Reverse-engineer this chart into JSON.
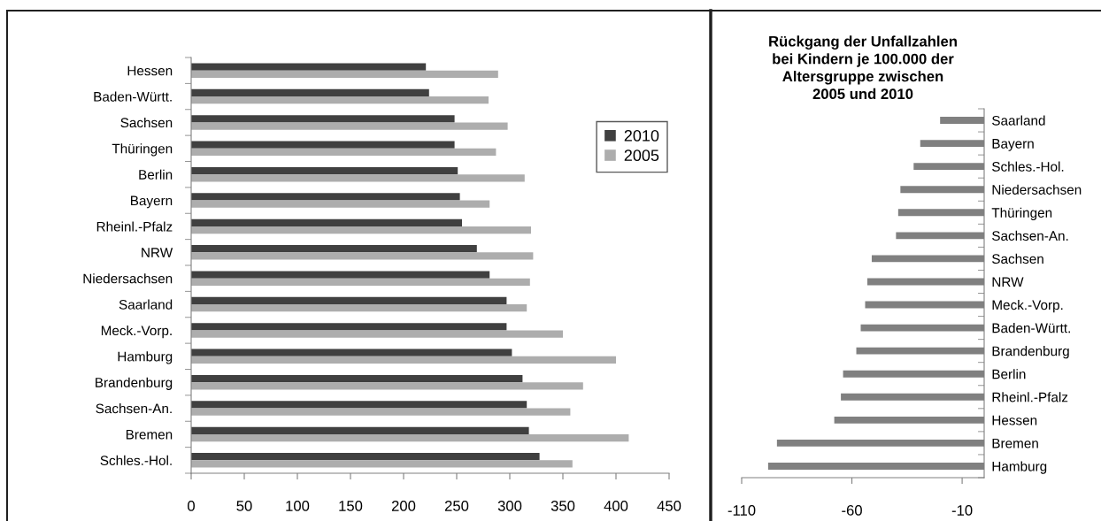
{
  "chart_data": [
    {
      "type": "bar",
      "orientation": "horizontal",
      "categories": [
        "Hessen",
        "Baden-Württ.",
        "Sachsen",
        "Thüringen",
        "Berlin",
        "Bayern",
        "Rheinl.-Pfalz",
        "NRW",
        "Niedersachsen",
        "Saarland",
        "Meck.-Vorp.",
        "Hamburg",
        "Brandenburg",
        "Sachsen-An.",
        "Bremen",
        "Schles.-Hol."
      ],
      "series": [
        {
          "name": "2010",
          "color": "#404040",
          "values": [
            221,
            224,
            248,
            248,
            251,
            253,
            255,
            269,
            281,
            297,
            297,
            302,
            312,
            316,
            318,
            328
          ]
        },
        {
          "name": "2005",
          "color": "#adadad",
          "values": [
            289,
            280,
            298,
            287,
            314,
            281,
            320,
            322,
            319,
            316,
            350,
            400,
            369,
            357,
            412,
            359
          ]
        }
      ],
      "xlim": [
        0,
        450
      ],
      "xticks": [
        0,
        50,
        100,
        150,
        200,
        250,
        300,
        350,
        400,
        450
      ],
      "legend": "right"
    },
    {
      "type": "bar",
      "orientation": "horizontal",
      "title": "Rückgang der Unfallzahlen\nbei Kindern je 100.000 der\nAltersgruppe zwischen\n2005 und 2010",
      "categories": [
        "Saarland",
        "Bayern",
        "Schles.-Hol.",
        "Niedersachsen",
        "Thüringen",
        "Sachsen-An.",
        "Sachsen",
        "NRW",
        "Meck.-Vorp.",
        "Baden-Württ.",
        "Brandenburg",
        "Berlin",
        "Rheinl.-Pfalz",
        "Hessen",
        "Bremen",
        "Hamburg"
      ],
      "values": [
        -20,
        -29,
        -32,
        -38,
        -39,
        -40,
        -51,
        -53,
        -54,
        -56,
        -58,
        -64,
        -65,
        -68,
        -94,
        -98
      ],
      "color": "#808080",
      "xlim": [
        -110,
        0
      ],
      "xticks": [
        -110,
        -60,
        -10
      ]
    }
  ]
}
